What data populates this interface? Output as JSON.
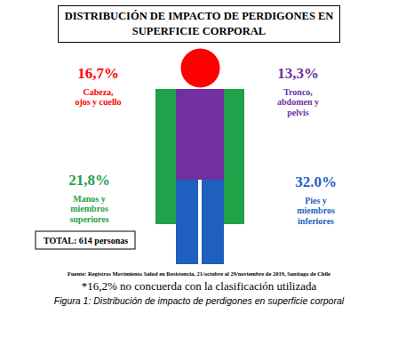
{
  "chart_data": {
    "type": "pictogram",
    "title": "DISTRIBUCIÓN DE IMPACTO DE PERDIGONES EN SUPERFICIE CORPORAL",
    "categories": [
      "Cabeza, ojos y cuello",
      "Tronco, abdomen y pelvis",
      "Manos y miembros superiores",
      "Pies y miembros inferiores"
    ],
    "values": [
      16.7,
      13.3,
      21.8,
      32.0
    ],
    "value_labels": [
      "16,7%",
      "13,3%",
      "21,8%",
      "32.0%"
    ],
    "colors": [
      "#ff0000",
      "#7030a0",
      "#1fa24a",
      "#1f5fbf"
    ],
    "data_labels": true,
    "total": "TOTAL: 614 personas",
    "source": "Fuente: Registros Movimiento Salud en Resistencia, 21/octubre al 29/noviembre de 2019, Santiago de Chile",
    "note": "*16,2% no concuerda con la clasificación utilizada",
    "caption": "Figura 1: Distribución de impacto de perdigones en superficie corporal"
  }
}
